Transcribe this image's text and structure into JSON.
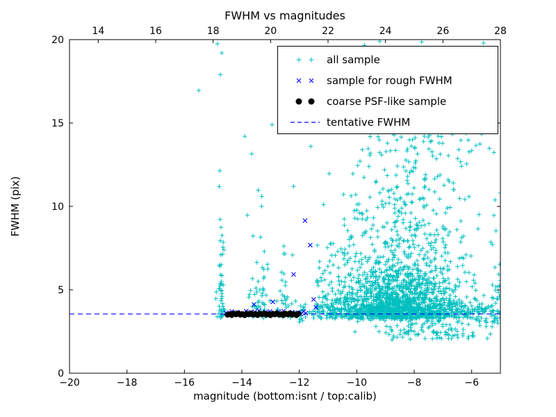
{
  "chart_data": {
    "type": "scatter",
    "title": "FWHM vs magnitudes",
    "xlabel": "magnitude (bottom:isnt / top:calib)",
    "ylabel": "FWHM (pix)",
    "x_axis_bottom": {
      "range": [
        -20,
        -5
      ],
      "ticks": [
        -20,
        -18,
        -16,
        -14,
        -12,
        -10,
        -8,
        -6
      ]
    },
    "x_axis_top": {
      "range": [
        13,
        28
      ],
      "ticks": [
        14,
        16,
        18,
        20,
        22,
        24,
        26,
        28
      ],
      "relation": "calib = isnt + 33"
    },
    "y_axis": {
      "range": [
        0,
        20
      ],
      "ticks": [
        0,
        5,
        10,
        15,
        20
      ]
    },
    "grid": false,
    "axis_color": "#000000",
    "background": "#ffffff",
    "legend_position": "upper right",
    "series": [
      {
        "name": "all sample",
        "marker": "plus",
        "color": "#00bfbf",
        "clusters": [
          {
            "count": 50,
            "x": {
              "type": "normal",
              "mean": -14.72,
              "sigma": 0.07,
              "min": -14.92,
              "max": -14.52
            },
            "y": {
              "type": "exp",
              "base": 3.3,
              "scale": 3.0,
              "max": 14.5
            }
          },
          {
            "count": 55,
            "x": {
              "type": "normal",
              "mean": -13.45,
              "sigma": 0.22,
              "min": -13.95,
              "max": -13.0
            },
            "y": {
              "type": "exp",
              "base": 3.3,
              "scale": 2.4,
              "max": 15.0
            }
          },
          {
            "count": 35,
            "x": {
              "type": "normal",
              "mean": -12.5,
              "sigma": 0.18,
              "min": -12.9,
              "max": -12.1
            },
            "y": {
              "type": "exp",
              "base": 3.3,
              "scale": 1.6,
              "max": 8.6
            }
          },
          {
            "count": 320,
            "x": {
              "type": "uniform",
              "min": -12.0,
              "max": -4.75
            },
            "y": {
              "type": "normal",
              "mean": 3.7,
              "sigma": 0.28,
              "min": 3.0,
              "max": 4.6
            }
          },
          {
            "count": 1500,
            "x": {
              "type": "normal",
              "mean": -8.6,
              "sigma": 1.15,
              "min": -11.4,
              "max": -4.75
            },
            "y": {
              "type": "exp",
              "base": 3.25,
              "scale": 1.5,
              "max": 11.5
            }
          },
          {
            "count": 250,
            "x": {
              "type": "normal",
              "mean": -8.0,
              "sigma": 1.2,
              "min": -10.6,
              "max": -4.75
            },
            "y": {
              "type": "uniform",
              "min": 7.5,
              "max": 16.2
            }
          },
          {
            "count": 60,
            "x": {
              "type": "uniform",
              "min": -11.4,
              "max": -9.9
            },
            "y": {
              "type": "exp",
              "base": 3.3,
              "scale": 2.0,
              "max": 13.0
            }
          },
          {
            "count": 26,
            "x": {
              "type": "uniform",
              "min": -9.8,
              "max": -5.3
            },
            "y": {
              "type": "uniform",
              "min": 16.2,
              "max": 20.0
            }
          },
          {
            "count": 110,
            "x": {
              "type": "normal",
              "mean": -7.3,
              "sigma": 1.3,
              "min": -10.2,
              "max": -4.75
            },
            "y": {
              "type": "uniform",
              "min": 2.0,
              "max": 3.15
            }
          },
          {
            "count": 28,
            "x": {
              "type": "normal",
              "mean": -5.15,
              "sigma": 0.1,
              "min": -5.35,
              "max": -4.9
            },
            "y": {
              "type": "exp",
              "base": 3.0,
              "scale": 2.8,
              "max": 15.4
            }
          }
        ],
        "outlier_points": [
          [
            -15.5,
            16.95
          ],
          [
            -14.85,
            19.75
          ],
          [
            -14.7,
            19.2
          ],
          [
            -14.75,
            17.9
          ],
          [
            -13.9,
            14.2
          ],
          [
            -12.95,
            14.9
          ],
          [
            -12.2,
            11.2
          ],
          [
            -11.6,
            13.6
          ],
          [
            -5.35,
            15.3
          ],
          [
            -6.05,
            19.5
          ],
          [
            -6.4,
            18.2
          ],
          [
            -7.4,
            18.6
          ],
          [
            -6.45,
            13.4
          ],
          [
            -5.0,
            10.8
          ],
          [
            -9.2,
            19.9
          ],
          [
            -10.4,
            16.8
          ]
        ]
      },
      {
        "name": "sample for rough FWHM",
        "marker": "cross",
        "color": "#0000ff",
        "points": [
          [
            -14.55,
            3.62
          ],
          [
            -14.45,
            3.55
          ],
          [
            -14.35,
            3.7
          ],
          [
            -14.25,
            3.58
          ],
          [
            -14.15,
            3.65
          ],
          [
            -14.05,
            3.52
          ],
          [
            -13.95,
            3.6
          ],
          [
            -13.85,
            3.72
          ],
          [
            -13.78,
            3.55
          ],
          [
            -13.7,
            3.64
          ],
          [
            -13.62,
            3.5
          ],
          [
            -13.55,
            3.68
          ],
          [
            -13.48,
            3.58
          ],
          [
            -13.4,
            3.75
          ],
          [
            -13.32,
            3.6
          ],
          [
            -13.25,
            3.52
          ],
          [
            -13.18,
            3.66
          ],
          [
            -13.1,
            3.58
          ],
          [
            -13.02,
            3.7
          ],
          [
            -12.95,
            3.55
          ],
          [
            -12.88,
            3.62
          ],
          [
            -12.8,
            3.5
          ],
          [
            -12.72,
            3.68
          ],
          [
            -12.65,
            3.57
          ],
          [
            -12.55,
            3.73
          ],
          [
            -12.45,
            3.6
          ],
          [
            -12.35,
            3.52
          ],
          [
            -12.25,
            3.66
          ],
          [
            -12.15,
            3.58
          ],
          [
            -12.05,
            3.64
          ],
          [
            -11.95,
            3.55
          ],
          [
            -11.85,
            3.7
          ],
          [
            -11.78,
            3.6
          ],
          [
            -11.8,
            9.15
          ],
          [
            -11.62,
            7.68
          ],
          [
            -12.2,
            5.92
          ],
          [
            -11.5,
            4.42
          ],
          [
            -12.92,
            4.28
          ],
          [
            -13.58,
            4.12
          ],
          [
            -11.42,
            3.95
          ]
        ]
      },
      {
        "name": "coarse PSF-like sample",
        "marker": "dot",
        "color": "#000000",
        "points": [
          [
            -14.5,
            3.5
          ],
          [
            -14.42,
            3.55
          ],
          [
            -14.35,
            3.48
          ],
          [
            -14.28,
            3.58
          ],
          [
            -14.2,
            3.52
          ],
          [
            -14.12,
            3.6
          ],
          [
            -14.05,
            3.5
          ],
          [
            -13.98,
            3.55
          ],
          [
            -13.9,
            3.47
          ],
          [
            -13.83,
            3.57
          ],
          [
            -13.76,
            3.52
          ],
          [
            -13.68,
            3.6
          ],
          [
            -13.6,
            3.5
          ],
          [
            -13.52,
            3.55
          ],
          [
            -13.45,
            3.48
          ],
          [
            -13.38,
            3.58
          ],
          [
            -13.3,
            3.52
          ],
          [
            -13.22,
            3.6
          ],
          [
            -13.15,
            3.5
          ],
          [
            -13.08,
            3.55
          ],
          [
            -13.0,
            3.47
          ],
          [
            -12.92,
            3.57
          ],
          [
            -12.85,
            3.52
          ],
          [
            -12.78,
            3.6
          ],
          [
            -12.7,
            3.5
          ],
          [
            -12.62,
            3.55
          ],
          [
            -12.55,
            3.48
          ],
          [
            -12.48,
            3.58
          ],
          [
            -12.4,
            3.52
          ],
          [
            -12.32,
            3.6
          ],
          [
            -12.25,
            3.5
          ],
          [
            -12.18,
            3.55
          ],
          [
            -12.1,
            3.47
          ],
          [
            -12.03,
            3.57
          ]
        ]
      },
      {
        "name": "tentative FWHM",
        "marker": "dashed-line",
        "type": "hline",
        "style": "dashed",
        "color": "#0000ff",
        "y": 3.55
      }
    ]
  }
}
